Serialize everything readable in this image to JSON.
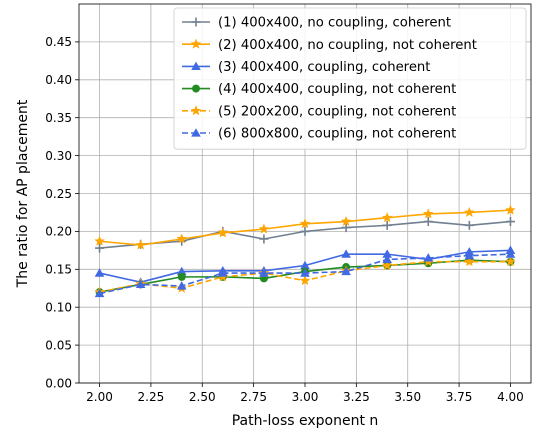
{
  "chart_data": {
    "type": "line",
    "xlabel": "Path-loss exponent n",
    "ylabel": "The ratio for AP placement",
    "xlim": [
      1.9,
      4.1
    ],
    "ylim": [
      0.0,
      0.5
    ],
    "xticks": [
      "2.00",
      "2.25",
      "2.50",
      "2.75",
      "3.00",
      "3.25",
      "3.50",
      "3.75",
      "4.00"
    ],
    "yticks": [
      "0.00",
      "0.05",
      "0.10",
      "0.15",
      "0.20",
      "0.25",
      "0.30",
      "0.35",
      "0.40",
      "0.45"
    ],
    "grid": true,
    "legend_position": "top-right",
    "x": [
      2.0,
      2.2,
      2.4,
      2.6,
      2.8,
      3.0,
      3.2,
      3.4,
      3.6,
      3.8,
      4.0
    ],
    "series": [
      {
        "name": "(1) 400x400, no coupling, coherent",
        "color": "#708090",
        "line_style": "solid",
        "marker": "plus",
        "values": [
          0.178,
          0.183,
          0.187,
          0.2,
          0.19,
          0.2,
          0.205,
          0.208,
          0.213,
          0.208,
          0.213
        ]
      },
      {
        "name": "(2) 400x400, no coupling, not coherent",
        "color": "#ffa500",
        "line_style": "solid",
        "marker": "star",
        "values": [
          0.187,
          0.182,
          0.19,
          0.198,
          0.203,
          0.21,
          0.213,
          0.218,
          0.223,
          0.225,
          0.228
        ]
      },
      {
        "name": "(3) 400x400, coupling, coherent",
        "color": "#4169e1",
        "line_style": "solid",
        "marker": "triangle",
        "values": [
          0.145,
          0.133,
          0.147,
          0.148,
          0.148,
          0.155,
          0.17,
          0.17,
          0.163,
          0.173,
          0.175
        ]
      },
      {
        "name": "(4) 400x400, coupling, not coherent",
        "color": "#228b22",
        "line_style": "solid",
        "marker": "circle",
        "values": [
          0.12,
          0.13,
          0.14,
          0.14,
          0.138,
          0.147,
          0.153,
          0.155,
          0.158,
          0.162,
          0.16
        ]
      },
      {
        "name": "(5) 200x200, coupling, not coherent",
        "color": "#ffa500",
        "line_style": "dashed",
        "marker": "star",
        "values": [
          0.12,
          0.131,
          0.125,
          0.14,
          0.145,
          0.135,
          0.148,
          0.155,
          0.16,
          0.16,
          0.16
        ]
      },
      {
        "name": "(6) 800x800, coupling, not coherent",
        "color": "#4169e1",
        "line_style": "dashed",
        "marker": "triangle",
        "values": [
          0.118,
          0.13,
          0.128,
          0.145,
          0.145,
          0.145,
          0.147,
          0.163,
          0.165,
          0.168,
          0.17
        ]
      }
    ]
  }
}
